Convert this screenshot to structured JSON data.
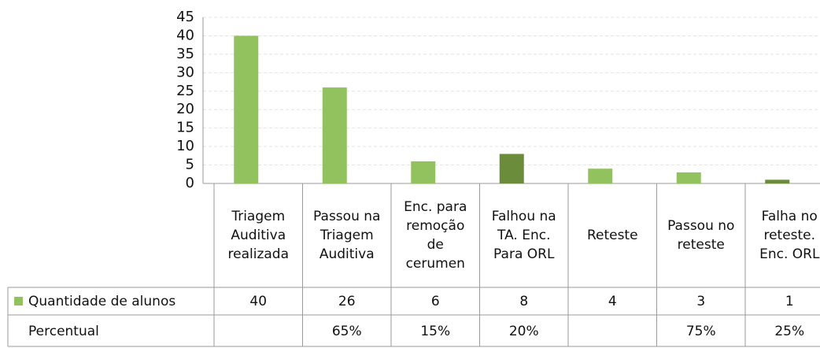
{
  "chart_data": {
    "type": "bar",
    "categories": [
      "Triagem\nAuditiva\nrealizada",
      "Passou na\nTriagem\nAuditiva",
      "Enc. para\nremoção\nde\ncerumen",
      "Falhou na\nTA. Enc.\nPara ORL",
      "Reteste",
      "Passou no\nreteste",
      "Falha no\nreteste.\nEnc. ORL"
    ],
    "series": [
      {
        "name": "Quantidade de alunos",
        "color": "#92c25e",
        "colors": [
          "#92c25e",
          "#92c25e",
          "#92c25e",
          "#6b8c3a",
          "#92c25e",
          "#92c25e",
          "#6b8c3a"
        ],
        "values": [
          40,
          26,
          6,
          8,
          4,
          3,
          1
        ]
      }
    ],
    "percent_row": {
      "name": "Percentual",
      "values": [
        null,
        65,
        15,
        20,
        null,
        75,
        25
      ],
      "value_labels": [
        null,
        "65%",
        "15%",
        "20%",
        null,
        "75%",
        "25%"
      ]
    },
    "ylim": [
      0,
      45
    ],
    "yticks": [
      0,
      5,
      10,
      15,
      20,
      25,
      30,
      35,
      40,
      45
    ],
    "grid": true
  }
}
